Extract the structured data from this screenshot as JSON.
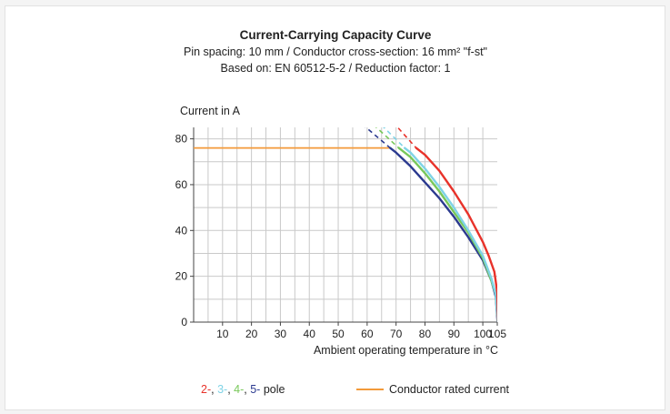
{
  "chart_data": {
    "type": "line",
    "title": "Current-Carrying Capacity Curve",
    "subtitle_1": "Pin spacing: 10 mm / Conductor cross-section: 16 mm² \"f-st\"",
    "subtitle_2": "Based on: EN 60512-5-2 / Reduction factor: 1",
    "ylabel": "Current in A",
    "xlabel": "Ambient operating temperature in °C",
    "xlim": [
      0,
      105
    ],
    "ylim": [
      0,
      85
    ],
    "x_ticks": [
      10,
      20,
      30,
      40,
      50,
      60,
      70,
      80,
      90,
      100,
      105
    ],
    "y_ticks": [
      0,
      20,
      40,
      60,
      80
    ],
    "grid": true,
    "legend_placement": "bottom",
    "series": [
      {
        "name": "2-",
        "color": "#e8322a",
        "solid": [
          [
            77,
            76
          ],
          [
            80,
            73
          ],
          [
            85,
            66
          ],
          [
            90,
            57
          ],
          [
            95,
            47
          ],
          [
            100,
            35
          ],
          [
            102,
            29
          ],
          [
            104,
            22
          ],
          [
            105,
            13
          ],
          [
            105.3,
            0
          ]
        ],
        "dashed": [
          [
            67,
            90
          ],
          [
            77,
            76
          ]
        ]
      },
      {
        "name": "3-",
        "color": "#7fd3e6",
        "solid": [
          [
            73,
            76
          ],
          [
            75,
            74
          ],
          [
            80,
            67
          ],
          [
            85,
            59
          ],
          [
            90,
            50
          ],
          [
            95,
            40
          ],
          [
            100,
            29
          ],
          [
            103,
            19
          ],
          [
            104.5,
            12
          ],
          [
            105.2,
            0
          ]
        ],
        "dashed": [
          [
            61,
            91
          ],
          [
            73,
            76
          ]
        ]
      },
      {
        "name": "4-",
        "color": "#78c85a",
        "solid": [
          [
            71,
            76
          ],
          [
            75,
            72
          ],
          [
            80,
            65
          ],
          [
            85,
            57
          ],
          [
            90,
            48
          ],
          [
            95,
            39
          ],
          [
            100,
            28
          ],
          [
            103,
            18
          ],
          [
            104.5,
            12
          ],
          [
            105.2,
            0
          ]
        ],
        "dashed": [
          [
            58,
            91
          ],
          [
            71,
            76
          ]
        ]
      },
      {
        "name": "5-",
        "color": "#2b3a8f",
        "solid": [
          [
            68,
            76
          ],
          [
            70,
            74
          ],
          [
            75,
            68
          ],
          [
            80,
            61
          ],
          [
            85,
            54
          ],
          [
            90,
            46
          ],
          [
            95,
            37
          ],
          [
            100,
            27
          ],
          [
            103,
            18
          ],
          [
            104.5,
            11
          ],
          [
            105.1,
            0
          ]
        ],
        "dashed": [
          [
            54,
            91
          ],
          [
            68,
            76
          ]
        ]
      }
    ],
    "rated_current": {
      "name": "Conductor rated current",
      "color": "#f39a3a",
      "value": 76,
      "x_end": 68
    },
    "legend": {
      "poles": [
        {
          "text": "2-",
          "color": "#e8322a"
        },
        {
          "text": ", ",
          "color": "#222222"
        },
        {
          "text": "3-",
          "color": "#7fd3e6"
        },
        {
          "text": ", ",
          "color": "#222222"
        },
        {
          "text": "4-",
          "color": "#78c85a"
        },
        {
          "text": ", ",
          "color": "#222222"
        },
        {
          "text": "5-",
          "color": "#2b3a8f"
        },
        {
          "text": " pole",
          "color": "#222222"
        }
      ],
      "rated_label": "Conductor rated current"
    }
  }
}
